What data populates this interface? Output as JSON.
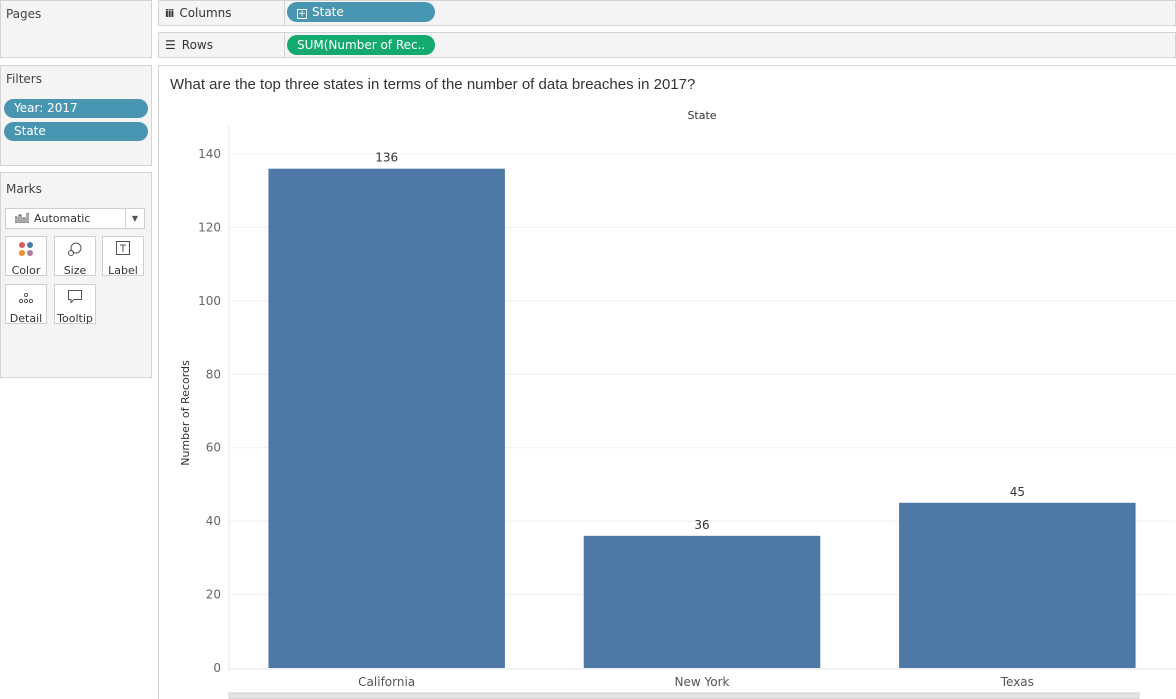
{
  "pages": {
    "title": "Pages"
  },
  "shelves": {
    "columns": {
      "label": "Columns",
      "pill": "State"
    },
    "rows": {
      "label": "Rows",
      "pill": "SUM(Number of Rec.."
    }
  },
  "filters": {
    "title": "Filters",
    "items": [
      "Year: 2017",
      "State"
    ]
  },
  "marks": {
    "title": "Marks",
    "type_selected": "Automatic",
    "buttons": {
      "color": "Color",
      "size": "Size",
      "label": "Label",
      "detail": "Detail",
      "tooltip": "Tooltip"
    }
  },
  "view": {
    "title": "What are the top three states in terms of the number of data breaches in 2017?"
  },
  "colors": {
    "bar": "#4e79a7",
    "pill_blue": "#4996b2",
    "pill_green": "#14a96e"
  },
  "chart_data": {
    "type": "bar",
    "title": "What are the top three states in terms of the number of data breaches in 2017?",
    "column_header": "State",
    "xlabel": "",
    "ylabel": "Number of Records",
    "categories": [
      "California",
      "New York",
      "Texas"
    ],
    "values": [
      136,
      36,
      45
    ],
    "data_labels": [
      "136",
      "36",
      "45"
    ],
    "ylim": [
      0,
      140
    ],
    "yticks": [
      0,
      20,
      40,
      60,
      80,
      100,
      120,
      140
    ],
    "grid": true,
    "legend": "none"
  }
}
